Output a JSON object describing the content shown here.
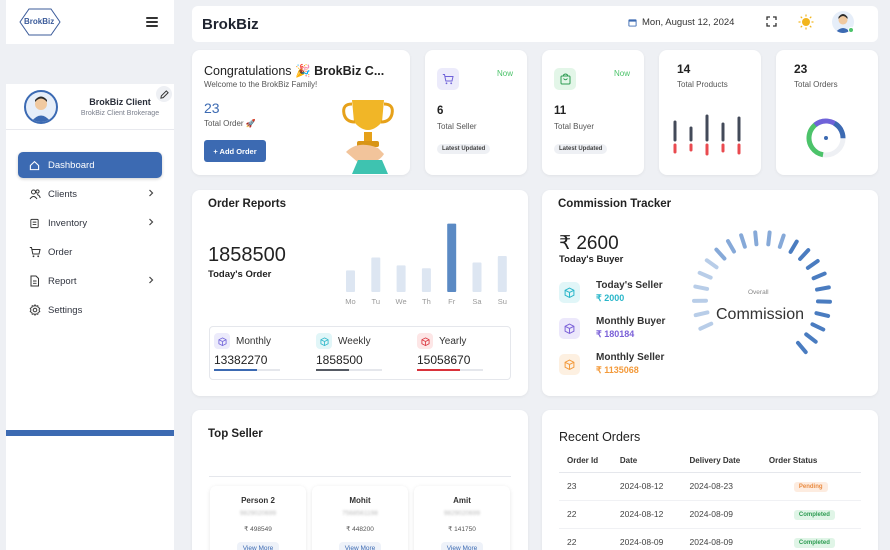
{
  "sidebar": {
    "logo_text": "BrokBiz",
    "profile": {
      "name": "BrokBiz Client",
      "subtitle": "BrokBiz Client Brokerage"
    },
    "nav": [
      {
        "label": "Dashboard",
        "icon": "home-icon",
        "active": true
      },
      {
        "label": "Clients",
        "icon": "users-icon",
        "has_children": true
      },
      {
        "label": "Inventory",
        "icon": "box-icon",
        "has_children": true
      },
      {
        "label": "Order",
        "icon": "cart-icon"
      },
      {
        "label": "Report",
        "icon": "document-icon",
        "has_children": true
      },
      {
        "label": "Settings",
        "icon": "gear-icon"
      }
    ]
  },
  "topbar": {
    "title": "BrokBiz",
    "date": "Mon, August 12, 2024",
    "icons": [
      "calendar-icon",
      "fullscreen-icon",
      "sun-icon",
      "user-avatar"
    ]
  },
  "congrats": {
    "title": "Congratulations",
    "emoji": "🎉",
    "brand": "BrokBiz C...",
    "subtitle": "Welcome to the BrokBiz Family!",
    "total_order": "23",
    "total_order_label": "Total Order 🚀",
    "button": "+ Add Order"
  },
  "total_seller": {
    "badge": "Now",
    "value": "6",
    "label": "Total Seller",
    "tag": "Latest Updated"
  },
  "total_buyer": {
    "badge": "Now",
    "value": "11",
    "label": "Total Buyer",
    "tag": "Latest Updated"
  },
  "total_products": {
    "value": "14",
    "label": "Total Products"
  },
  "total_orders": {
    "value": "23",
    "label": "Total Orders"
  },
  "order_reports": {
    "title": "Order Reports",
    "value": "1858500",
    "label": "Today's Order",
    "periods": [
      {
        "label": "Monthly",
        "value": "13382270",
        "fill": 0.65,
        "color": "#3c6ab2"
      },
      {
        "label": "Weekly",
        "value": "1858500",
        "fill": 0.5,
        "color": "#555a63"
      },
      {
        "label": "Yearly",
        "value": "15058670",
        "fill": 0.65,
        "color": "#d9323b"
      }
    ]
  },
  "chart_data": {
    "type": "bar",
    "categories": [
      "Mo",
      "Tu",
      "We",
      "Th",
      "Fr",
      "Sa",
      "Su"
    ],
    "values": [
      30,
      48,
      37,
      33,
      95,
      41,
      50
    ],
    "highlight": "Fr"
  },
  "commission": {
    "title": "Commission Tracker",
    "value": "₹ 2600",
    "label": "Today's Buyer",
    "rows": [
      {
        "label": "Today's Seller",
        "value": "₹ 2000",
        "color": "#29b6c9",
        "bg": "#e1f6f8"
      },
      {
        "label": "Monthly Buyer",
        "value": "₹ 180184",
        "color": "#7b61d8",
        "bg": "#ece8fb"
      },
      {
        "label": "Monthly Seller",
        "value": "₹ 1135068",
        "color": "#f39a3b",
        "bg": "#fdf0e1"
      }
    ],
    "gauge_sub": "Overall",
    "gauge_main": "Commission"
  },
  "top_seller": {
    "title": "Top Seller",
    "sellers": [
      {
        "name": "Person 2",
        "phone": "9829020699",
        "amount": "₹ 498549",
        "button": "View More"
      },
      {
        "name": "Mohit",
        "phone": "7568561198",
        "amount": "₹ 448200",
        "button": "View More"
      },
      {
        "name": "Amit",
        "phone": "9829020699",
        "amount": "₹ 141750",
        "button": "View More"
      }
    ]
  },
  "recent_orders": {
    "title": "Recent Orders",
    "columns": [
      "Order Id",
      "Date",
      "Delivery Date",
      "Order Status"
    ],
    "rows": [
      {
        "id": "23",
        "date": "2024-08-12",
        "delivery": "2024-08-23",
        "status": "Pending"
      },
      {
        "id": "22",
        "date": "2024-08-12",
        "delivery": "2024-08-09",
        "status": "Completed"
      },
      {
        "id": "22",
        "date": "2024-08-09",
        "delivery": "2024-08-09",
        "status": "Completed"
      }
    ]
  }
}
